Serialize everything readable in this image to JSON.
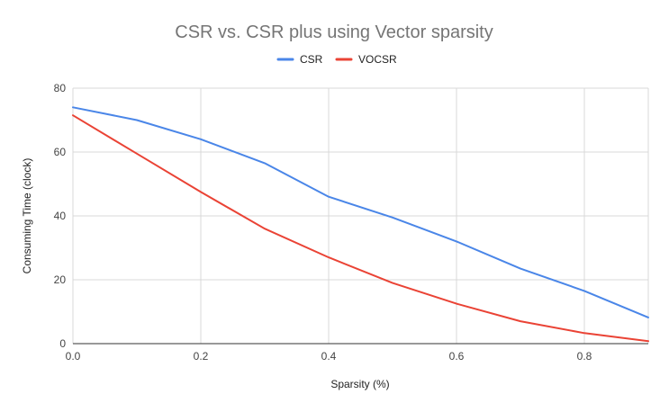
{
  "chart_data": {
    "type": "line",
    "title": "CSR vs. CSR plus using Vector sparsity",
    "xlabel": "Sparsity (%)",
    "ylabel": "Consuming Time (clock)",
    "x": [
      0.0,
      0.1,
      0.2,
      0.3,
      0.4,
      0.5,
      0.6,
      0.7,
      0.8,
      0.9
    ],
    "xlim": [
      0.0,
      0.9
    ],
    "ylim": [
      0,
      80
    ],
    "x_ticks": [
      "0.0",
      "0.2",
      "0.4",
      "0.6",
      "0.8"
    ],
    "x_tick_values": [
      0.0,
      0.2,
      0.4,
      0.6,
      0.8
    ],
    "y_ticks": [
      "0",
      "20",
      "40",
      "60",
      "80"
    ],
    "y_tick_values": [
      0,
      20,
      40,
      60,
      80
    ],
    "grid": true,
    "legend_position": "top",
    "series": [
      {
        "name": "CSR",
        "color": "#4a86e8",
        "values": [
          74,
          70,
          64,
          56.5,
          46,
          39.5,
          32,
          23.5,
          16.5,
          8.2
        ]
      },
      {
        "name": "VOCSR",
        "color": "#ea4335",
        "values": [
          71.5,
          59.5,
          47.5,
          36,
          27,
          19,
          12.5,
          7,
          3.3,
          0.8
        ]
      }
    ]
  }
}
